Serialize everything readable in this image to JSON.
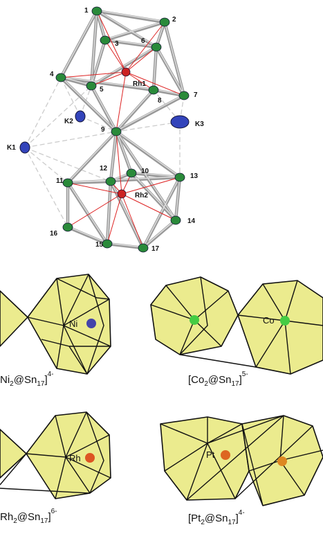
{
  "structure": {
    "atoms": [
      "1",
      "2",
      "3",
      "4",
      "5",
      "6",
      "7",
      "8",
      "9",
      "10",
      "11",
      "12",
      "13",
      "14",
      "15",
      "16",
      "17",
      "Rh1",
      "Rh2"
    ],
    "potassium": [
      "K1",
      "K2",
      "K3"
    ]
  },
  "panels": [
    {
      "metal": "Ni",
      "caption": [
        "Ni",
        "2",
        "@Sn",
        "17",
        "]",
        "4-"
      ]
    },
    {
      "metal": "Co",
      "caption": [
        "[Co",
        "2",
        "@Sn",
        "17",
        "]",
        "5-"
      ]
    },
    {
      "metal": "Rh",
      "caption": [
        "Rh",
        "2",
        "@Sn",
        "17",
        "]",
        "6-"
      ]
    },
    {
      "metal": "Pt",
      "caption": [
        "[Pt",
        "2",
        "@Sn",
        "17",
        "]",
        "4-"
      ]
    }
  ]
}
